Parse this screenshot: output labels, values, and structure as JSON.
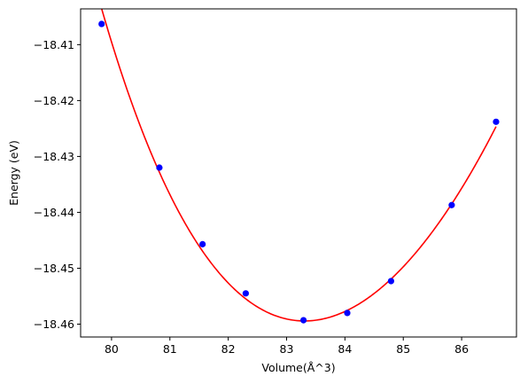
{
  "chart_data": {
    "type": "scatter",
    "title": "",
    "xlabel": "Volume(Å^3)",
    "ylabel": "Energy (eV)",
    "xlim": [
      79.47,
      86.94
    ],
    "ylim": [
      -18.4623,
      -18.4036
    ],
    "x_ticks": [
      80,
      81,
      82,
      83,
      84,
      85,
      86
    ],
    "x_tick_labels": [
      "80",
      "81",
      "82",
      "83",
      "84",
      "85",
      "86"
    ],
    "y_ticks": [
      -18.46,
      -18.45,
      -18.44,
      -18.43,
      -18.42,
      -18.41
    ],
    "y_tick_labels": [
      "−18.46",
      "−18.45",
      "−18.44",
      "−18.43",
      "−18.42",
      "−18.41"
    ],
    "grid": false,
    "legend": "none",
    "series": [
      {
        "type": "scatter",
        "color": "#0000ff",
        "x": [
          79.83,
          80.82,
          81.56,
          82.3,
          83.29,
          84.04,
          84.79,
          85.83,
          86.59
        ],
        "y": [
          -18.4063,
          -18.432,
          -18.4457,
          -18.4545,
          -18.4593,
          -18.458,
          -18.4523,
          -18.4387,
          -18.4238
        ]
      },
      {
        "type": "line",
        "color": "#ff0000",
        "fit": "polynomial",
        "x_range": [
          79.83,
          86.59
        ],
        "coefficients": [
          -18.4594,
          0.00067,
          0.003615,
          -0.000194,
          2.05e-05
        ],
        "center": 83.4
      }
    ]
  }
}
